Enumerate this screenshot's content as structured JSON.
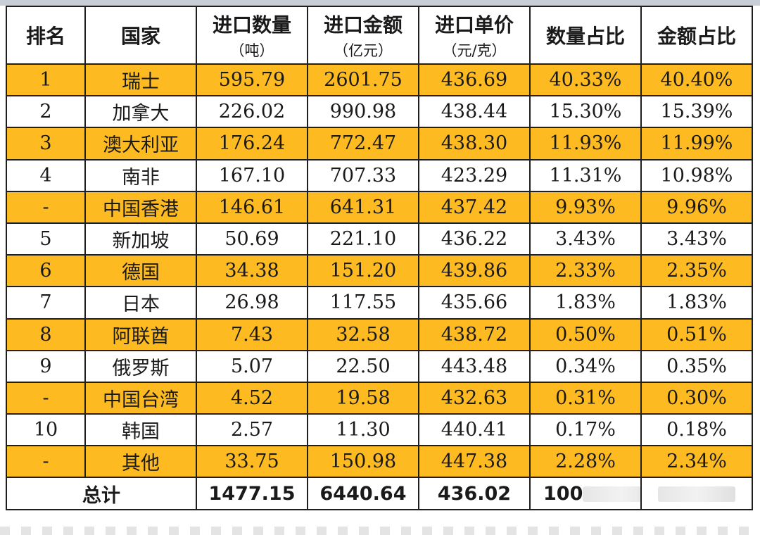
{
  "table": {
    "headers": [
      {
        "label": "排名",
        "unit": ""
      },
      {
        "label": "国家",
        "unit": ""
      },
      {
        "label": "进口数量",
        "unit": "（吨）"
      },
      {
        "label": "进口金额",
        "unit": "（亿元）"
      },
      {
        "label": "进口单价",
        "unit": "（元/克）"
      },
      {
        "label": "数量占比",
        "unit": ""
      },
      {
        "label": "金额占比",
        "unit": ""
      }
    ],
    "rows": [
      {
        "rank": "1",
        "country": "瑞士",
        "qty": "595.79",
        "amount": "2601.75",
        "price": "436.69",
        "qty_share": "40.33%",
        "amt_share": "40.40%",
        "highlight": true
      },
      {
        "rank": "2",
        "country": "加拿大",
        "qty": "226.02",
        "amount": "990.98",
        "price": "438.44",
        "qty_share": "15.30%",
        "amt_share": "15.39%",
        "highlight": false
      },
      {
        "rank": "3",
        "country": "澳大利亚",
        "qty": "176.24",
        "amount": "772.47",
        "price": "438.30",
        "qty_share": "11.93%",
        "amt_share": "11.99%",
        "highlight": true
      },
      {
        "rank": "4",
        "country": "南非",
        "qty": "167.10",
        "amount": "707.33",
        "price": "423.29",
        "qty_share": "11.31%",
        "amt_share": "10.98%",
        "highlight": false
      },
      {
        "rank": "-",
        "country": "中国香港",
        "qty": "146.61",
        "amount": "641.31",
        "price": "437.42",
        "qty_share": "9.93%",
        "amt_share": "9.96%",
        "highlight": true
      },
      {
        "rank": "5",
        "country": "新加坡",
        "qty": "50.69",
        "amount": "221.10",
        "price": "436.22",
        "qty_share": "3.43%",
        "amt_share": "3.43%",
        "highlight": false
      },
      {
        "rank": "6",
        "country": "德国",
        "qty": "34.38",
        "amount": "151.20",
        "price": "439.86",
        "qty_share": "2.33%",
        "amt_share": "2.35%",
        "highlight": true
      },
      {
        "rank": "7",
        "country": "日本",
        "qty": "26.98",
        "amount": "117.55",
        "price": "435.66",
        "qty_share": "1.83%",
        "amt_share": "1.83%",
        "highlight": false
      },
      {
        "rank": "8",
        "country": "阿联酋",
        "qty": "7.43",
        "amount": "32.58",
        "price": "438.72",
        "qty_share": "0.50%",
        "amt_share": "0.51%",
        "highlight": true
      },
      {
        "rank": "9",
        "country": "俄罗斯",
        "qty": "5.07",
        "amount": "22.50",
        "price": "443.48",
        "qty_share": "0.34%",
        "amt_share": "0.35%",
        "highlight": false
      },
      {
        "rank": "-",
        "country": "中国台湾",
        "qty": "4.52",
        "amount": "19.58",
        "price": "432.63",
        "qty_share": "0.31%",
        "amt_share": "0.30%",
        "highlight": true
      },
      {
        "rank": "10",
        "country": "韩国",
        "qty": "2.57",
        "amount": "11.30",
        "price": "440.41",
        "qty_share": "0.17%",
        "amt_share": "0.18%",
        "highlight": false
      },
      {
        "rank": "-",
        "country": "其他",
        "qty": "33.75",
        "amount": "150.98",
        "price": "447.38",
        "qty_share": "2.28%",
        "amt_share": "2.34%",
        "highlight": true
      }
    ],
    "total": {
      "label": "总计",
      "qty": "1477.15",
      "amount": "6440.64",
      "price": "436.02",
      "qty_share": "100"
    }
  },
  "colors": {
    "highlight": "#fdbb21",
    "border": "#1f1f1f",
    "text": "#1a1a1a"
  }
}
